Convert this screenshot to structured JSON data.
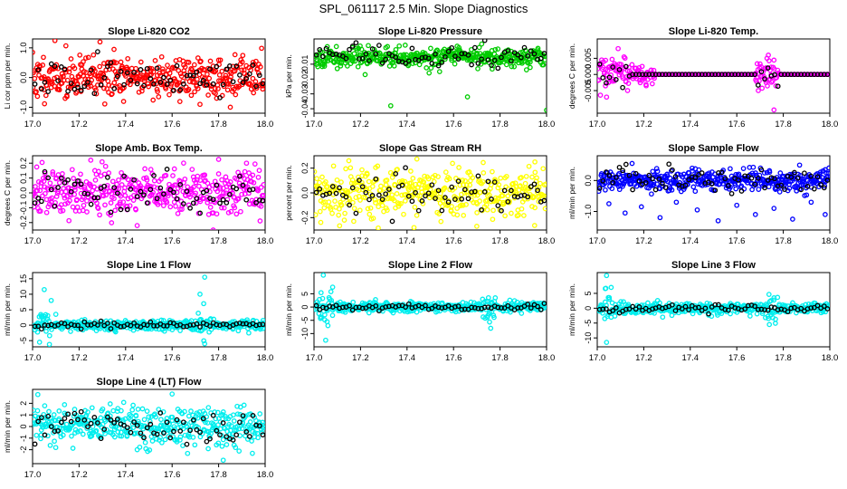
{
  "figure": {
    "title": "SPL_061117  2.5 Min. Slope Diagnostics"
  },
  "chart_data": [
    {
      "type": "scatter",
      "title": "Slope Li-820 CO2",
      "ylabel": "Li cor ppm per min.",
      "color": "#ff0000",
      "xlim": [
        17.0,
        18.0
      ],
      "xticks": [
        "17.0",
        "17.2",
        "17.4",
        "17.6",
        "17.8",
        "18.0"
      ],
      "ylim": [
        -1.2,
        1.3
      ],
      "yticks": [
        -1.0,
        0.0,
        1.0
      ],
      "ytick_labels": [
        "-1.0",
        "0.0",
        "1.0"
      ],
      "gen": {
        "kind": "noise",
        "center": 0.0,
        "spread": 0.35,
        "black_spread": 0.3,
        "seed": 11,
        "outliers": [
          [
            17.29,
            1.2
          ],
          [
            17.85,
            -1.0
          ],
          [
            17.72,
            -0.9
          ],
          [
            17.0,
            0.85
          ],
          [
            17.35,
            0.95
          ]
        ]
      }
    },
    {
      "type": "scatter",
      "title": "Slope Li-820 Pressure",
      "ylabel": "kPa per min.",
      "color": "#00cc00",
      "xlim": [
        17.0,
        18.0
      ],
      "xticks": [
        "17.0",
        "17.2",
        "17.4",
        "17.6",
        "17.8",
        "18.0"
      ],
      "ylim": [
        -0.043,
        0.007
      ],
      "yticks": [
        -0.04,
        -0.03,
        -0.02,
        -0.01
      ],
      "ytick_labels": [
        "-0.04",
        "-0.03",
        "-0.02",
        "-0.01"
      ],
      "gen": {
        "kind": "noise",
        "center": -0.005,
        "spread": 0.003,
        "black_spread": 0.004,
        "seed": 23,
        "outliers": [
          [
            17.33,
            -0.038
          ],
          [
            17.66,
            -0.032
          ],
          [
            18.0,
            -0.041
          ],
          [
            17.1,
            -0.013
          ],
          [
            17.22,
            -0.017
          ],
          [
            17.54,
            -0.015
          ]
        ]
      }
    },
    {
      "type": "scatter",
      "title": "Slope Li-820 Temp.",
      "ylabel": "degrees C per min.",
      "color": "#ff00ff",
      "xlim": [
        17.0,
        18.0
      ],
      "xticks": [
        "17.0",
        "17.2",
        "17.4",
        "17.6",
        "17.8",
        "18.0"
      ],
      "ylim": [
        -0.012,
        0.011
      ],
      "yticks": [
        -0.005,
        0.0,
        0.005
      ],
      "ytick_labels": [
        "-0.005",
        "0.000",
        "0.005"
      ],
      "gen": {
        "kind": "temp",
        "seed": 37,
        "outliers": [
          [
            17.09,
            0.008
          ],
          [
            17.04,
            -0.007
          ],
          [
            17.73,
            0.005
          ],
          [
            17.76,
            -0.011
          ]
        ]
      }
    },
    {
      "type": "scatter",
      "title": "Slope Amb. Box Temp.",
      "ylabel": "degrees C per min.",
      "color": "#ff00ff",
      "xlim": [
        17.0,
        18.0
      ],
      "xticks": [
        "17.0",
        "17.2",
        "17.4",
        "17.6",
        "17.8",
        "18.0"
      ],
      "ylim": [
        -0.25,
        0.25
      ],
      "yticks": [
        -0.2,
        -0.1,
        0.0,
        0.1,
        0.2
      ],
      "ytick_labels": [
        "-0.2",
        "-0.1",
        "0.0",
        "0.1",
        "0.2"
      ],
      "gen": {
        "kind": "noise",
        "center": 0.0,
        "spread": 0.08,
        "black_spread": 0.07,
        "seed": 41,
        "outliers": [
          [
            17.25,
            0.22
          ],
          [
            17.45,
            -0.22
          ],
          [
            17.92,
            0.2
          ]
        ]
      }
    },
    {
      "type": "scatter",
      "title": "Slope Gas Stream RH",
      "ylabel": "percent per min.",
      "color": "#ffff00",
      "xlim": [
        17.0,
        18.0
      ],
      "xticks": [
        "17.0",
        "17.2",
        "17.4",
        "17.6",
        "17.8",
        "18.0"
      ],
      "ylim": [
        -0.3,
        0.3
      ],
      "yticks": [
        -0.2,
        0.0,
        0.2
      ],
      "ytick_labels": [
        "-0.2",
        "0.0",
        "0.2"
      ],
      "gen": {
        "kind": "noise",
        "center": 0.0,
        "spread": 0.1,
        "black_spread": 0.09,
        "seed": 53,
        "outliers": [
          [
            17.15,
            0.26
          ],
          [
            17.7,
            -0.27
          ],
          [
            17.43,
            -0.28
          ],
          [
            17.95,
            0.25
          ]
        ]
      }
    },
    {
      "type": "scatter",
      "title": "Slope Sample Flow",
      "ylabel": "ml/min per min.",
      "color": "#0000ff",
      "xlim": [
        17.0,
        18.0
      ],
      "xticks": [
        "17.0",
        "17.2",
        "17.4",
        "17.6",
        "17.8",
        "18.0"
      ],
      "ylim": [
        -1.6,
        0.8
      ],
      "yticks": [
        -1.0,
        0.0
      ],
      "ytick_labels": [
        "-1.0",
        "0.0"
      ],
      "gen": {
        "kind": "flow",
        "center": 0.0,
        "spread": 0.15,
        "black_spread": 0.2,
        "seed": 67,
        "outliers": [
          [
            17.05,
            -0.75
          ],
          [
            17.12,
            -1.05
          ],
          [
            17.19,
            -0.85
          ],
          [
            17.27,
            -1.2
          ],
          [
            17.34,
            -0.7
          ],
          [
            17.43,
            -0.95
          ],
          [
            17.52,
            -1.3
          ],
          [
            17.6,
            -0.8
          ],
          [
            17.68,
            -1.1
          ],
          [
            17.76,
            -0.9
          ],
          [
            17.84,
            -1.25
          ],
          [
            17.92,
            -0.7
          ],
          [
            17.98,
            -1.1
          ],
          [
            17.15,
            0.55
          ],
          [
            17.87,
            0.5
          ],
          [
            17.98,
            0.35
          ]
        ]
      }
    },
    {
      "type": "scatter",
      "title": "Slope Line 1 Flow",
      "ylabel": "ml/min per min.",
      "color": "#00eeee",
      "xlim": [
        17.0,
        18.0
      ],
      "xticks": [
        "17.0",
        "17.2",
        "17.4",
        "17.6",
        "17.8",
        "18.0"
      ],
      "ylim": [
        -7,
        17
      ],
      "yticks": [
        -5,
        0,
        5,
        10,
        15
      ],
      "ytick_labels": [
        "-5",
        "0",
        "5",
        "10",
        "15"
      ],
      "gen": {
        "kind": "spike",
        "center": 0.0,
        "spread": 0.8,
        "black_spread": 0.5,
        "seed": 71,
        "spikes": [
          17.05,
          17.74
        ],
        "outliers": [
          [
            17.05,
            11.5
          ],
          [
            17.08,
            8.0
          ],
          [
            17.03,
            -5.5
          ],
          [
            17.74,
            15.5
          ],
          [
            17.72,
            10.0
          ],
          [
            17.74,
            -6.0
          ],
          [
            17.1,
            3.5
          ]
        ]
      }
    },
    {
      "type": "scatter",
      "title": "Slope Line 2 Flow",
      "ylabel": "ml/min per min.",
      "color": "#00eeee",
      "xlim": [
        17.0,
        18.0
      ],
      "xticks": [
        "17.0",
        "17.2",
        "17.4",
        "17.6",
        "17.8",
        "18.0"
      ],
      "ylim": [
        -15,
        13
      ],
      "yticks": [
        -10,
        -5,
        0,
        5
      ],
      "ytick_labels": [
        "-10",
        "-5",
        "0",
        "5"
      ],
      "gen": {
        "kind": "spike",
        "center": 0.0,
        "spread": 0.9,
        "black_spread": 0.6,
        "seed": 79,
        "spikes": [
          17.05,
          17.75
        ],
        "outliers": [
          [
            17.04,
            12.0
          ],
          [
            17.08,
            7.5
          ],
          [
            17.05,
            -12.5
          ],
          [
            17.75,
            3.5
          ],
          [
            17.76,
            -8.0
          ],
          [
            17.06,
            -7.0
          ]
        ]
      }
    },
    {
      "type": "scatter",
      "title": "Slope Line 3 Flow",
      "ylabel": "ml/min per min.",
      "color": "#00eeee",
      "xlim": [
        17.0,
        18.0
      ],
      "xticks": [
        "17.0",
        "17.2",
        "17.4",
        "17.6",
        "17.8",
        "18.0"
      ],
      "ylim": [
        -13,
        12
      ],
      "yticks": [
        -10,
        -5,
        0,
        5
      ],
      "ytick_labels": [
        "-10",
        "-5",
        "0",
        "5"
      ],
      "gen": {
        "kind": "spike",
        "center": 0.0,
        "spread": 0.9,
        "black_spread": 0.6,
        "seed": 83,
        "spikes": [
          17.05,
          17.75
        ],
        "outliers": [
          [
            17.04,
            11.0
          ],
          [
            17.06,
            7.0
          ],
          [
            17.04,
            -11.5
          ],
          [
            17.76,
            3.5
          ],
          [
            17.74,
            -5.5
          ]
        ]
      }
    },
    {
      "type": "scatter",
      "title": "Slope Line 4 (LT) Flow",
      "ylabel": "ml/min per min.",
      "color": "#00eeee",
      "xlim": [
        17.0,
        18.0
      ],
      "xticks": [
        "17.0",
        "17.2",
        "17.4",
        "17.6",
        "17.8",
        "18.0"
      ],
      "ylim": [
        -3.2,
        3.2
      ],
      "yticks": [
        -2,
        -1,
        0,
        1,
        2
      ],
      "ytick_labels": [
        "-2",
        "-1",
        "0",
        "1",
        "2"
      ],
      "gen": {
        "kind": "noise",
        "center": 0.0,
        "spread": 0.9,
        "black_spread": 0.8,
        "seed": 97,
        "outliers": [
          [
            17.6,
            2.8
          ],
          [
            17.82,
            -2.9
          ],
          [
            17.45,
            -2.0
          ]
        ]
      }
    }
  ]
}
